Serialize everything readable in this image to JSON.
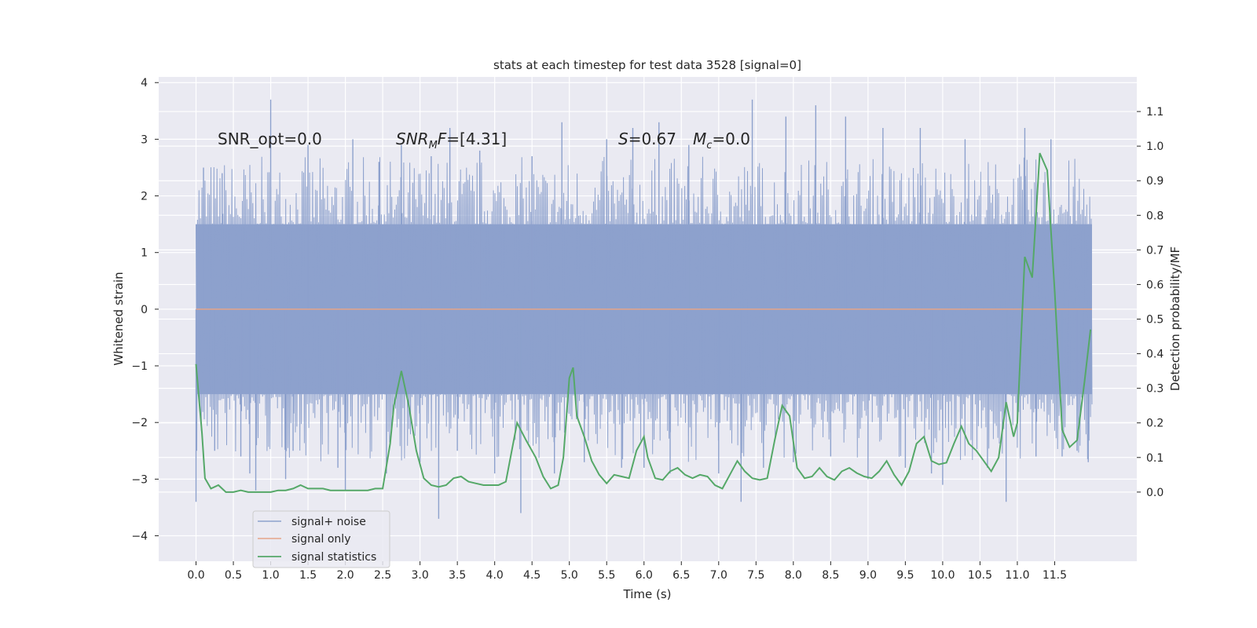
{
  "chart_data": {
    "type": "line",
    "title": "stats at each timestep for test data 3528 [signal=0]",
    "xlabel": "Time (s)",
    "ylabel": "Whitened strain",
    "y2label": "Detection probability/MF",
    "xlim": [
      -0.5,
      12.6
    ],
    "ylim": [
      -4.45,
      4.1
    ],
    "y2lim": [
      -0.2,
      1.2
    ],
    "x_ticks": [
      "0.0",
      "0.5",
      "1.0",
      "1.5",
      "2.0",
      "2.5",
      "3.0",
      "3.5",
      "4.0",
      "4.5",
      "5.0",
      "5.5",
      "6.0",
      "6.5",
      "7.0",
      "7.5",
      "8.0",
      "8.5",
      "9.0",
      "9.5",
      "10.0",
      "10.5",
      "11.0",
      "11.5"
    ],
    "y_ticks": [
      "4",
      "3",
      "2",
      "1",
      "0",
      "−1",
      "−2",
      "−3",
      "−4"
    ],
    "y2_ticks": [
      "1.1",
      "1.0",
      "0.9",
      "0.8",
      "0.7",
      "0.6",
      "0.5",
      "0.4",
      "0.3",
      "0.2",
      "0.1",
      "0.0"
    ],
    "grid": true,
    "legend_position": "lower-left",
    "annotations": {
      "snr_opt": "SNR_opt=0.0",
      "snr_mf_base": "SNR",
      "snr_mf_sub": "M",
      "snr_mf_rest": "F",
      "snr_mf_value": "=[4.31]",
      "s_symbol": "S",
      "s_value": "=0.67",
      "mc_symbol": "M",
      "mc_sub": "c",
      "mc_value": "=0.0"
    },
    "series": [
      {
        "name": "signal+ noise",
        "color": "#8da1cd",
        "axis": "left",
        "t_start": 0.0,
        "t_end": 12.0,
        "typical_band": [
          -1.5,
          1.5
        ],
        "spikes": [
          [
            0.0,
            -3.4
          ],
          [
            0.1,
            2.5
          ],
          [
            0.25,
            -2.5
          ],
          [
            0.35,
            2.4
          ],
          [
            0.6,
            -2.6
          ],
          [
            0.72,
            -2.9
          ],
          [
            0.8,
            -3.2
          ],
          [
            1.0,
            3.7
          ],
          [
            1.2,
            -3.0
          ],
          [
            1.3,
            -2.5
          ],
          [
            1.5,
            2.9
          ],
          [
            1.9,
            -2.8
          ],
          [
            2.0,
            -3.2
          ],
          [
            2.1,
            3.0
          ],
          [
            2.45,
            2.6
          ],
          [
            2.55,
            -2.9
          ],
          [
            2.75,
            2.9
          ],
          [
            3.0,
            -2.7
          ],
          [
            3.15,
            2.7
          ],
          [
            3.25,
            -3.7
          ],
          [
            3.4,
            3.2
          ],
          [
            3.5,
            -2.5
          ],
          [
            3.8,
            2.8
          ],
          [
            4.0,
            -2.9
          ],
          [
            4.35,
            -3.6
          ],
          [
            4.5,
            2.7
          ],
          [
            4.8,
            -2.9
          ],
          [
            4.9,
            3.3
          ],
          [
            5.2,
            -2.7
          ],
          [
            5.5,
            3.0
          ],
          [
            5.7,
            -2.8
          ],
          [
            5.85,
            3.2
          ],
          [
            6.0,
            -2.8
          ],
          [
            6.2,
            3.3
          ],
          [
            6.35,
            -2.9
          ],
          [
            6.6,
            2.9
          ],
          [
            7.0,
            -2.9
          ],
          [
            7.3,
            -3.4
          ],
          [
            7.45,
            3.7
          ],
          [
            7.6,
            -2.8
          ],
          [
            7.9,
            3.4
          ],
          [
            8.0,
            -2.7
          ],
          [
            8.3,
            3.6
          ],
          [
            8.5,
            -2.6
          ],
          [
            8.7,
            3.4
          ],
          [
            9.0,
            -3.0
          ],
          [
            9.2,
            3.2
          ],
          [
            9.5,
            -2.8
          ],
          [
            9.7,
            3.2
          ],
          [
            9.85,
            -2.9
          ],
          [
            10.0,
            -3.1
          ],
          [
            10.3,
            3.0
          ],
          [
            10.6,
            -2.8
          ],
          [
            10.85,
            -3.4
          ],
          [
            11.1,
            3.2
          ],
          [
            11.25,
            -2.6
          ],
          [
            11.45,
            3.0
          ],
          [
            11.6,
            -2.6
          ],
          [
            11.8,
            -2.5
          ],
          [
            11.95,
            -2.7
          ]
        ]
      },
      {
        "name": "signal only",
        "color": "#e6a489",
        "axis": "left",
        "x": [
          0.0,
          12.0
        ],
        "y": [
          0.0,
          0.0
        ]
      },
      {
        "name": "signal statistics",
        "color": "#55a868",
        "axis": "right",
        "x": [
          0.0,
          0.08,
          0.12,
          0.2,
          0.3,
          0.4,
          0.5,
          0.6,
          0.7,
          0.8,
          0.9,
          1.0,
          1.1,
          1.2,
          1.3,
          1.4,
          1.5,
          1.6,
          1.7,
          1.8,
          1.9,
          2.0,
          2.1,
          2.2,
          2.3,
          2.4,
          2.5,
          2.6,
          2.65,
          2.75,
          2.85,
          2.95,
          3.05,
          3.15,
          3.25,
          3.35,
          3.45,
          3.55,
          3.65,
          3.75,
          3.85,
          3.95,
          4.05,
          4.15,
          4.3,
          4.42,
          4.55,
          4.65,
          4.75,
          4.85,
          4.92,
          5.0,
          5.05,
          5.1,
          5.2,
          5.3,
          5.4,
          5.5,
          5.6,
          5.7,
          5.8,
          5.9,
          6.0,
          6.05,
          6.15,
          6.25,
          6.35,
          6.45,
          6.55,
          6.65,
          6.75,
          6.85,
          6.95,
          7.05,
          7.15,
          7.25,
          7.35,
          7.45,
          7.55,
          7.65,
          7.75,
          7.85,
          7.95,
          8.05,
          8.15,
          8.25,
          8.35,
          8.45,
          8.55,
          8.65,
          8.75,
          8.85,
          8.95,
          9.05,
          9.15,
          9.25,
          9.35,
          9.45,
          9.55,
          9.65,
          9.75,
          9.85,
          9.95,
          10.05,
          10.15,
          10.25,
          10.35,
          10.45,
          10.55,
          10.65,
          10.75,
          10.85,
          10.95,
          11.0,
          11.1,
          11.2,
          11.3,
          11.4,
          11.5,
          11.6,
          11.7,
          11.8,
          11.9,
          11.98
        ],
        "y": [
          0.37,
          0.17,
          0.04,
          0.01,
          0.02,
          0.0,
          0.0,
          0.005,
          0.0,
          0.0,
          0.0,
          0.0,
          0.005,
          0.005,
          0.01,
          0.02,
          0.01,
          0.01,
          0.01,
          0.005,
          0.005,
          0.005,
          0.005,
          0.005,
          0.005,
          0.01,
          0.01,
          0.14,
          0.25,
          0.35,
          0.25,
          0.12,
          0.04,
          0.02,
          0.015,
          0.02,
          0.04,
          0.045,
          0.03,
          0.025,
          0.02,
          0.02,
          0.02,
          0.03,
          0.2,
          0.15,
          0.1,
          0.045,
          0.01,
          0.02,
          0.1,
          0.33,
          0.36,
          0.22,
          0.16,
          0.09,
          0.05,
          0.025,
          0.05,
          0.045,
          0.04,
          0.12,
          0.16,
          0.1,
          0.04,
          0.035,
          0.06,
          0.07,
          0.05,
          0.04,
          0.05,
          0.045,
          0.02,
          0.01,
          0.05,
          0.09,
          0.06,
          0.04,
          0.035,
          0.04,
          0.15,
          0.25,
          0.22,
          0.07,
          0.04,
          0.045,
          0.07,
          0.045,
          0.035,
          0.06,
          0.07,
          0.055,
          0.045,
          0.04,
          0.06,
          0.09,
          0.05,
          0.02,
          0.06,
          0.14,
          0.16,
          0.09,
          0.08,
          0.085,
          0.14,
          0.19,
          0.14,
          0.12,
          0.09,
          0.06,
          0.1,
          0.26,
          0.16,
          0.2,
          0.68,
          0.62,
          0.98,
          0.93,
          0.58,
          0.18,
          0.13,
          0.15,
          0.32,
          0.47
        ]
      }
    ]
  }
}
